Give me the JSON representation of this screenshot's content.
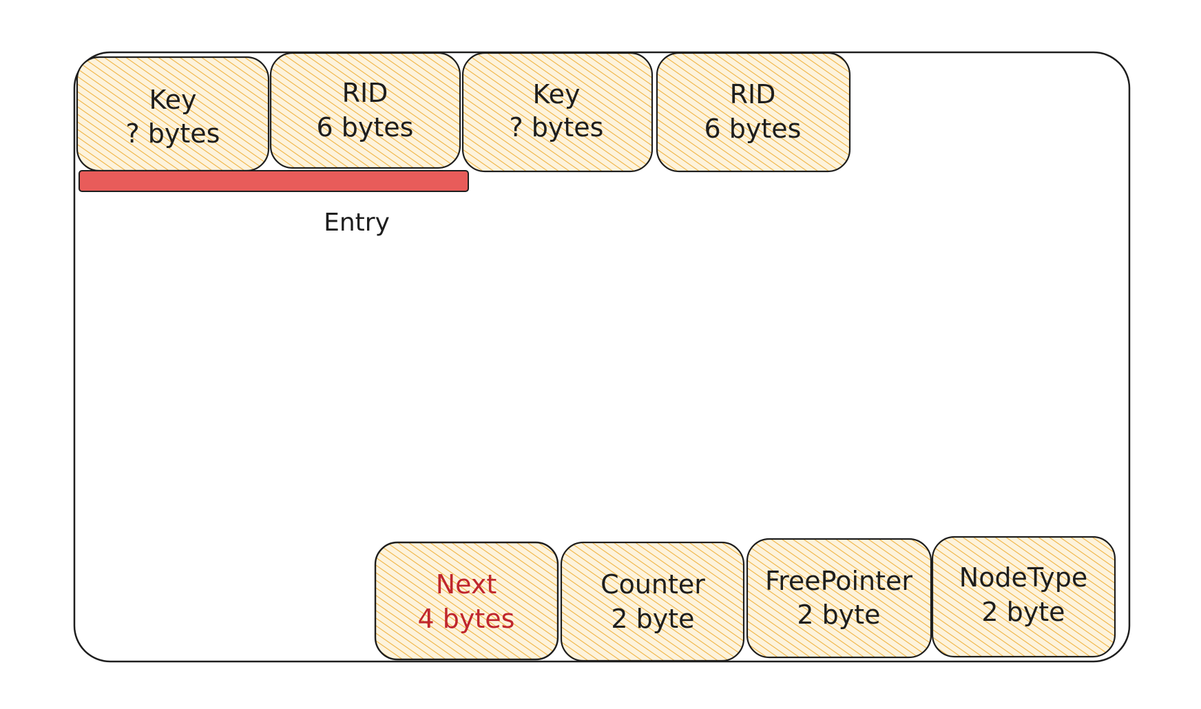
{
  "colors": {
    "cell_fill": "#f5b942",
    "stroke": "#1e1e1e",
    "entry_bar": "#e85c5a",
    "accent_text": "#c0272d"
  },
  "top_cells": [
    {
      "name": "Key",
      "size": "? bytes"
    },
    {
      "name": "RID",
      "size": "6 bytes"
    },
    {
      "name": "Key",
      "size": "? bytes"
    },
    {
      "name": "RID",
      "size": "6 bytes"
    }
  ],
  "entry_label": "Entry",
  "bottom_cells": [
    {
      "name": "Next",
      "size": "4 bytes",
      "highlight": true
    },
    {
      "name": "Counter",
      "size": "2 byte",
      "highlight": false
    },
    {
      "name": "FreePointer",
      "size": "2 byte",
      "highlight": false
    },
    {
      "name": "NodeType",
      "size": "2 byte",
      "highlight": false
    }
  ]
}
